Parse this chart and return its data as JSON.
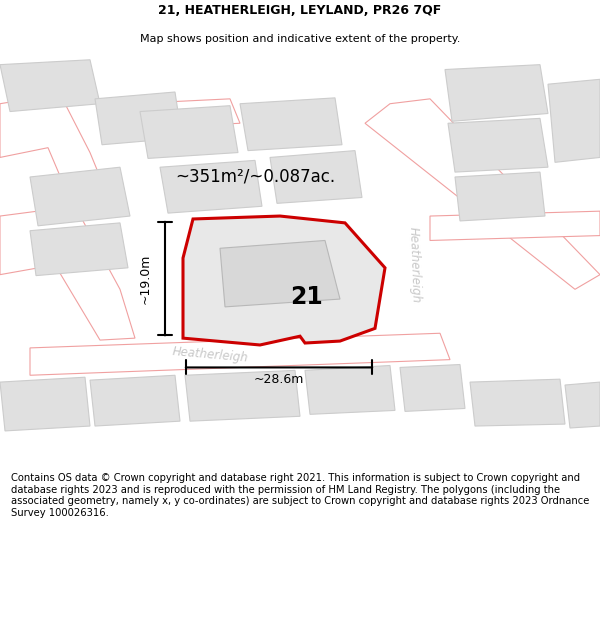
{
  "title": "21, HEATHERLEIGH, LEYLAND, PR26 7QF",
  "subtitle": "Map shows position and indicative extent of the property.",
  "footer": "Contains OS data © Crown copyright and database right 2021. This information is subject to Crown copyright and database rights 2023 and is reproduced with the permission of HM Land Registry. The polygons (including the associated geometry, namely x, y co-ordinates) are subject to Crown copyright and database rights 2023 Ordnance Survey 100026316.",
  "bg_color": "#ffffff",
  "map_bg": "#f5f5f5",
  "road_bg": "#ffffff",
  "road_edge": "#f0a0a0",
  "block_fill": "#e0e0e0",
  "block_edge": "#cccccc",
  "prop_fill": "#e8e8e8",
  "prop_edge": "#cc0000",
  "prop_lw": 2.2,
  "title_fs": 9,
  "subtitle_fs": 8,
  "footer_fs": 7.2,
  "label_color": "#c8c8c8",
  "area_label": "~351m²/~0.087ac.",
  "num_label": "21",
  "dim_w_label": "~28.6m",
  "dim_h_label": "~19.0m",
  "street_h": "Heatherleigh",
  "street_v": "Heatherleigh",
  "title_fontsize": 9,
  "subtitle_fontsize": 8
}
